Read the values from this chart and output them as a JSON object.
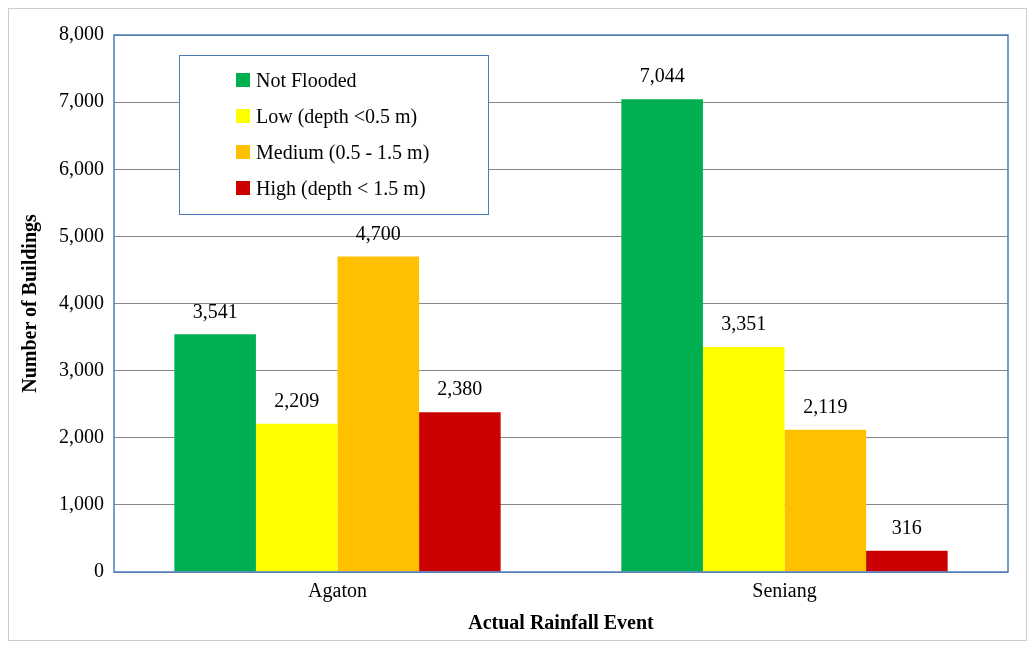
{
  "chart_data": {
    "type": "bar",
    "xlabel": "Actual Rainfall Event",
    "ylabel": "Number of Buildings",
    "categories": [
      "Agaton",
      "Seniang"
    ],
    "series": [
      {
        "name": "Not Flooded",
        "color": "#00b050",
        "values": [
          3541,
          7044
        ],
        "value_labels": [
          "3,541",
          "7,044"
        ]
      },
      {
        "name": "Low (depth <0.5 m)",
        "color": "#ffff00",
        "values": [
          2209,
          3351
        ],
        "value_labels": [
          "2,209",
          "3,351"
        ]
      },
      {
        "name": "Medium (0.5 - 1.5 m)",
        "color": "#ffc000",
        "values": [
          4700,
          2119
        ],
        "value_labels": [
          "4,700",
          "2,119"
        ]
      },
      {
        "name": "High (depth < 1.5 m)",
        "color": "#cc0000",
        "values": [
          2380,
          316
        ],
        "value_labels": [
          "2,380",
          "316"
        ]
      }
    ],
    "ylim": [
      0,
      8000
    ],
    "yticks": [
      0,
      {
        "value": 1000,
        "label": "1,000"
      },
      {
        "value": 2000,
        "label": "2,000"
      },
      {
        "value": 3000,
        "label": "3,000"
      },
      {
        "value": 4000,
        "label": "4,000"
      },
      {
        "value": 5000,
        "label": "5,000"
      },
      {
        "value": 6000,
        "label": "6,000"
      },
      {
        "value": 7000,
        "label": "7,000"
      },
      {
        "value": 8000,
        "label": "8,000"
      }
    ],
    "grid": "y",
    "legend": "top left"
  }
}
